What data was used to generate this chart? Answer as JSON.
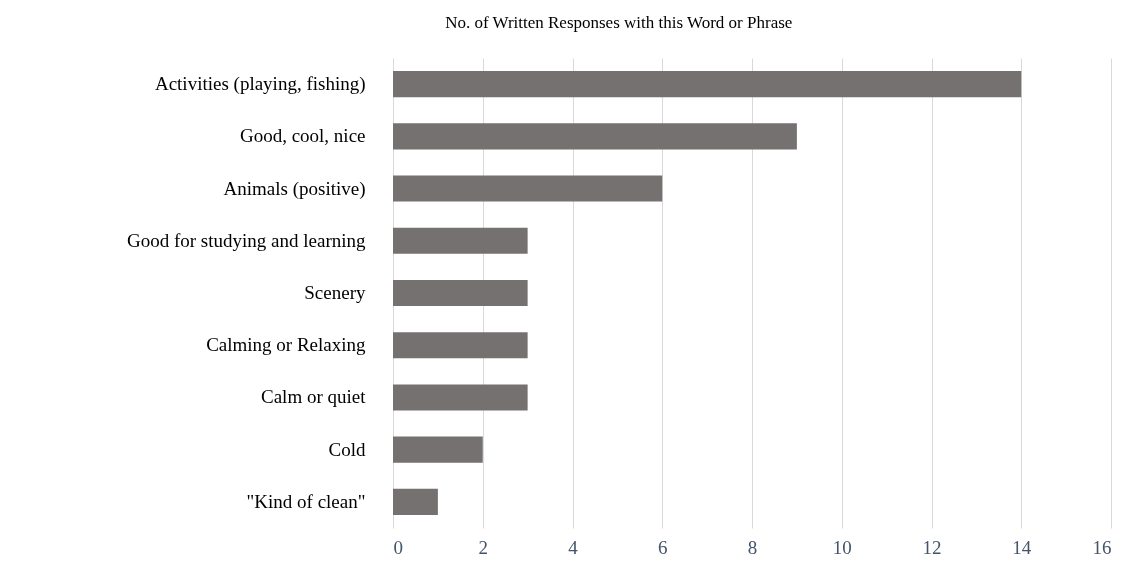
{
  "chart_data": {
    "type": "bar",
    "orientation": "horizontal",
    "title": "No. of Written Responses with this Word or Phrase",
    "categories": [
      "Activities (playing, fishing)",
      "Good, cool, nice",
      "Animals (positive)",
      "Good for studying and learning",
      "Scenery",
      "Calming or Relaxing",
      "Calm or quiet",
      "Cold",
      "\"Kind of clean\""
    ],
    "values": [
      14,
      9,
      6,
      3,
      3,
      3,
      3,
      2,
      1
    ],
    "color": "#767171",
    "xlim": [
      0,
      16
    ],
    "xticks": [
      0,
      2,
      4,
      6,
      8,
      10,
      12,
      14,
      16
    ],
    "grid": "x"
  }
}
